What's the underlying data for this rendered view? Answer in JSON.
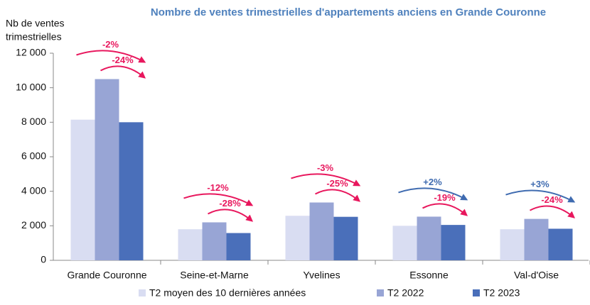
{
  "chart_data": {
    "type": "bar",
    "title": "Nombre de ventes trimestrielles d'appartements anciens en Grande Couronne",
    "y_label": [
      "Nb de ventes",
      "trimestrielles"
    ],
    "categories": [
      "Grande Couronne",
      "Seine-et-Marne",
      "Yvelines",
      "Essonne",
      "Val-d'Oise"
    ],
    "series": [
      {
        "name": "T2 moyen des 10 dernières années",
        "color": "#d9ddf2",
        "values": [
          8150,
          1800,
          2580,
          2000,
          1800
        ]
      },
      {
        "name": "T2 2022",
        "color": "#98a5d5",
        "values": [
          10500,
          2200,
          3350,
          2530,
          2400
        ]
      },
      {
        "name": "T2 2023",
        "color": "#4a6fba",
        "values": [
          8000,
          1580,
          2520,
          2050,
          1830
        ]
      }
    ],
    "annotations": [
      [
        {
          "text": "-2%",
          "color": "#e8175d"
        },
        {
          "text": "-24%",
          "color": "#e8175d"
        }
      ],
      [
        {
          "text": "-12%",
          "color": "#e8175d"
        },
        {
          "text": "-28%",
          "color": "#e8175d"
        }
      ],
      [
        {
          "text": "-3%",
          "color": "#e8175d"
        },
        {
          "text": "-25%",
          "color": "#e8175d"
        }
      ],
      [
        {
          "text": "+2%",
          "color": "#3f6bb0"
        },
        {
          "text": "-19%",
          "color": "#e8175d"
        }
      ],
      [
        {
          "text": "+3%",
          "color": "#3f6bb0"
        },
        {
          "text": "-24%",
          "color": "#e8175d"
        }
      ]
    ],
    "ylim": [
      0,
      12000
    ],
    "yticks": [
      0,
      {
        "value": 2000,
        "label": "2 000"
      },
      {
        "value": 4000,
        "label": "4 000"
      },
      {
        "value": 6000,
        "label": "6 000"
      },
      {
        "value": 8000,
        "label": "8 000"
      },
      {
        "value": 10000,
        "label": "10 000"
      },
      {
        "value": 12000,
        "label": "12 000"
      }
    ],
    "title_color": "#4f81bd",
    "legend": "bottom"
  }
}
